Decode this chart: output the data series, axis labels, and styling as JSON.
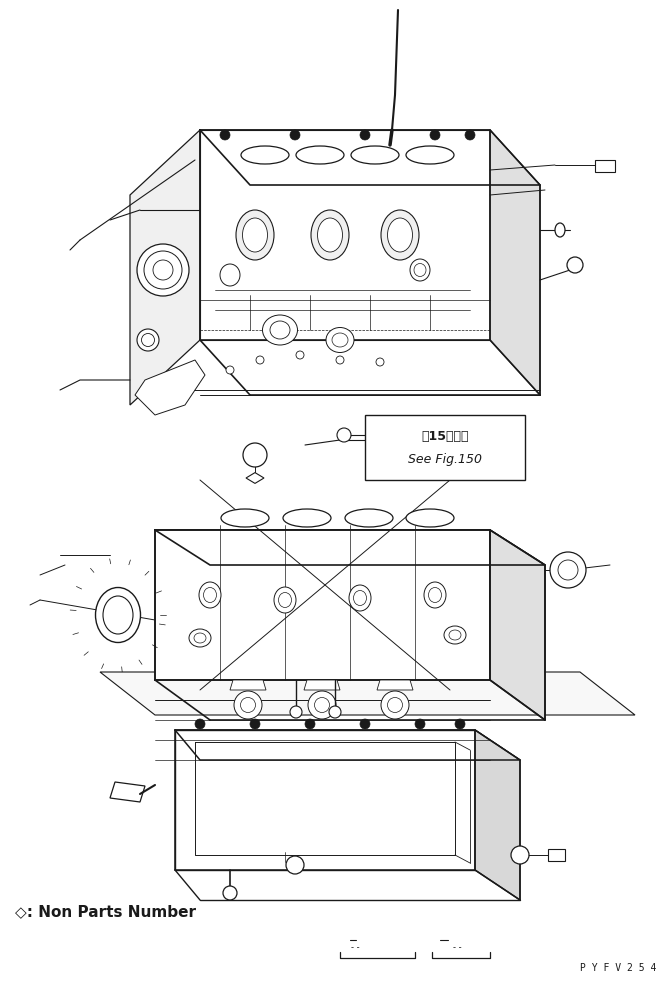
{
  "background_color": "#ffffff",
  "figure_width": 6.65,
  "figure_height": 9.81,
  "dpi": 100,
  "watermark_text": "P Y F V 2 5 4",
  "legend_text": "◇: Non Parts Number",
  "ref_line1": "第15图参照",
  "ref_line2": "See Fig.150",
  "line_color": "#1a1a1a"
}
